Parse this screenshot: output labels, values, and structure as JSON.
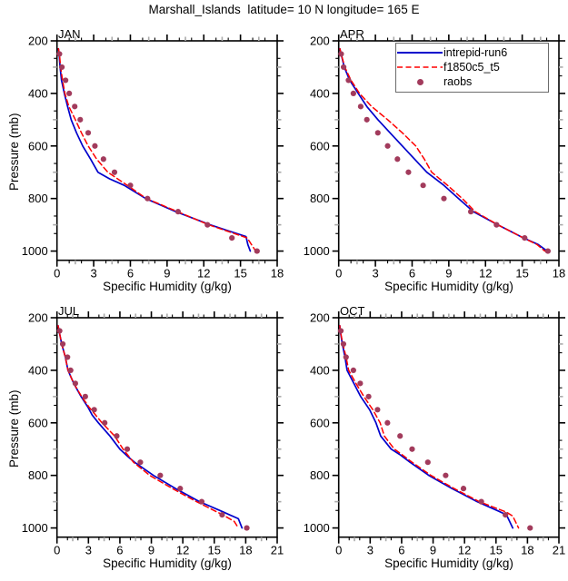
{
  "title": "Marshall_Islands  latitude= 10 N longitude= 165 E",
  "colors": {
    "model_run6": "#0000cc",
    "model_f1850": "#ff0000",
    "raobs": "#a23b5c",
    "axis": "#000000",
    "minor_gray": "#aaaaaa",
    "legend_border": "#6b6b6b"
  },
  "legend": {
    "position": "top-right of APR panel",
    "entries": [
      {
        "label": "intrepid-run6",
        "type": "line-solid",
        "color": "#0000cc"
      },
      {
        "label": "f1850c5_t5",
        "type": "line-dashed",
        "color": "#ff0000"
      },
      {
        "label": "raobs",
        "type": "dot",
        "color": "#a23b5c"
      }
    ]
  },
  "chart_data": [
    {
      "type": "line",
      "title": "JAN",
      "xlabel": "Specific Humidity (g/kg)",
      "ylabel": "Pressure (mb)",
      "xlim": [
        0,
        18
      ],
      "xticks": [
        0,
        3,
        6,
        9,
        12,
        15,
        18
      ],
      "ylim": [
        200,
        1035
      ],
      "yticks": [
        200,
        400,
        600,
        800,
        1000
      ],
      "y_axis_inverted_note": "pressure increases downward",
      "series": [
        {
          "name": "intrepid-run6",
          "style": "solid",
          "color": "#0000cc",
          "points": [
            [
              0.12,
              230
            ],
            [
              0.18,
              250
            ],
            [
              0.25,
              300
            ],
            [
              0.37,
              350
            ],
            [
              0.6,
              400
            ],
            [
              0.87,
              450
            ],
            [
              1.16,
              500
            ],
            [
              1.6,
              550
            ],
            [
              2.1,
              600
            ],
            [
              2.75,
              650
            ],
            [
              3.35,
              700
            ],
            [
              4.3,
              725
            ],
            [
              5.5,
              750
            ],
            [
              7.25,
              800
            ],
            [
              9.7,
              850
            ],
            [
              12.5,
              900
            ],
            [
              15.45,
              945
            ],
            [
              15.6,
              975
            ],
            [
              15.8,
              1000
            ]
          ]
        },
        {
          "name": "f1850c5_t5",
          "style": "dashed",
          "color": "#ff0000",
          "points": [
            [
              0.12,
              230
            ],
            [
              0.2,
              250
            ],
            [
              0.3,
              300
            ],
            [
              0.45,
              350
            ],
            [
              0.65,
              400
            ],
            [
              0.97,
              450
            ],
            [
              1.5,
              500
            ],
            [
              2.0,
              550
            ],
            [
              2.55,
              600
            ],
            [
              3.25,
              650
            ],
            [
              4.15,
              700
            ],
            [
              5.75,
              750
            ],
            [
              7.3,
              800
            ],
            [
              9.85,
              850
            ],
            [
              12.4,
              900
            ],
            [
              15.55,
              950
            ],
            [
              16.25,
              1000
            ]
          ]
        },
        {
          "name": "raobs",
          "style": "markers",
          "color": "#a23b5c",
          "points": [
            [
              0.2,
              250
            ],
            [
              0.4,
              300
            ],
            [
              0.7,
              350
            ],
            [
              1.0,
              400
            ],
            [
              1.45,
              450
            ],
            [
              1.9,
              500
            ],
            [
              2.55,
              550
            ],
            [
              3.1,
              600
            ],
            [
              3.8,
              650
            ],
            [
              4.7,
              700
            ],
            [
              6.0,
              750
            ],
            [
              7.4,
              800
            ],
            [
              9.9,
              850
            ],
            [
              12.3,
              900
            ],
            [
              14.3,
              950
            ],
            [
              16.35,
              1000
            ]
          ]
        }
      ]
    },
    {
      "type": "line",
      "title": "APR",
      "xlabel": "Specific Humidity (g/kg)",
      "ylabel": "Pressure (mb)",
      "xlim": [
        0,
        18
      ],
      "xticks": [
        0,
        3,
        6,
        9,
        12,
        15,
        18
      ],
      "ylim": [
        200,
        1035
      ],
      "yticks": [
        200,
        400,
        600,
        800,
        1000
      ],
      "series": [
        {
          "name": "intrepid-run6",
          "style": "solid",
          "color": "#0000cc",
          "points": [
            [
              0.1,
              230
            ],
            [
              0.2,
              250
            ],
            [
              0.45,
              300
            ],
            [
              0.9,
              350
            ],
            [
              1.6,
              400
            ],
            [
              2.3,
              450
            ],
            [
              3.2,
              500
            ],
            [
              4.2,
              550
            ],
            [
              5.2,
              600
            ],
            [
              6.2,
              650
            ],
            [
              7.2,
              700
            ],
            [
              8.6,
              750
            ],
            [
              9.8,
              800
            ],
            [
              11.0,
              850
            ],
            [
              13.0,
              900
            ],
            [
              15.1,
              950
            ],
            [
              16.3,
              975
            ],
            [
              17.05,
              1000
            ]
          ]
        },
        {
          "name": "f1850c5_t5",
          "style": "dashed",
          "color": "#ff0000",
          "points": [
            [
              0.1,
              230
            ],
            [
              0.2,
              250
            ],
            [
              0.5,
              300
            ],
            [
              1.0,
              350
            ],
            [
              1.7,
              400
            ],
            [
              2.7,
              450
            ],
            [
              4.0,
              500
            ],
            [
              5.2,
              550
            ],
            [
              6.3,
              600
            ],
            [
              7.0,
              650
            ],
            [
              7.6,
              700
            ],
            [
              8.9,
              750
            ],
            [
              10.1,
              800
            ],
            [
              11.15,
              850
            ],
            [
              13.0,
              900
            ],
            [
              15.1,
              950
            ],
            [
              16.2,
              975
            ],
            [
              16.85,
              1000
            ]
          ]
        },
        {
          "name": "raobs",
          "style": "markers",
          "color": "#a23b5c",
          "points": [
            [
              0.2,
              250
            ],
            [
              0.4,
              300
            ],
            [
              0.8,
              350
            ],
            [
              1.2,
              400
            ],
            [
              1.8,
              450
            ],
            [
              2.3,
              500
            ],
            [
              3.2,
              550
            ],
            [
              4.0,
              600
            ],
            [
              4.8,
              650
            ],
            [
              5.7,
              700
            ],
            [
              6.9,
              750
            ],
            [
              8.6,
              800
            ],
            [
              10.8,
              850
            ],
            [
              12.9,
              900
            ],
            [
              15.2,
              950
            ],
            [
              17.1,
              1000
            ]
          ]
        }
      ]
    },
    {
      "type": "line",
      "title": "JUL",
      "xlabel": "Specific Humidity (g/kg)",
      "ylabel": "Pressure (mb)",
      "xlim": [
        0,
        21
      ],
      "xticks": [
        0,
        3,
        6,
        9,
        12,
        15,
        18,
        21
      ],
      "ylim": [
        200,
        1035
      ],
      "yticks": [
        200,
        400,
        600,
        800,
        1000
      ],
      "series": [
        {
          "name": "intrepid-run6",
          "style": "solid",
          "color": "#0000cc",
          "points": [
            [
              0.1,
              230
            ],
            [
              0.2,
              250
            ],
            [
              0.45,
              300
            ],
            [
              0.8,
              350
            ],
            [
              1.05,
              400
            ],
            [
              1.6,
              450
            ],
            [
              2.3,
              500
            ],
            [
              2.95,
              540
            ],
            [
              3.35,
              570
            ],
            [
              3.95,
              600
            ],
            [
              5.05,
              650
            ],
            [
              6.0,
              700
            ],
            [
              6.8,
              730
            ],
            [
              7.4,
              750
            ],
            [
              9.2,
              800
            ],
            [
              11.3,
              850
            ],
            [
              13.6,
              900
            ],
            [
              15.9,
              940
            ],
            [
              17.3,
              965
            ],
            [
              17.65,
              1000
            ]
          ]
        },
        {
          "name": "f1850c5_t5",
          "style": "dashed",
          "color": "#ff0000",
          "points": [
            [
              0.1,
              230
            ],
            [
              0.2,
              250
            ],
            [
              0.45,
              300
            ],
            [
              0.8,
              350
            ],
            [
              1.05,
              400
            ],
            [
              1.6,
              450
            ],
            [
              2.35,
              500
            ],
            [
              3.05,
              540
            ],
            [
              4.3,
              600
            ],
            [
              5.5,
              650
            ],
            [
              6.3,
              700
            ],
            [
              7.3,
              750
            ],
            [
              8.85,
              800
            ],
            [
              11.0,
              850
            ],
            [
              13.3,
              900
            ],
            [
              15.8,
              950
            ],
            [
              16.9,
              975
            ],
            [
              17.3,
              1000
            ]
          ]
        },
        {
          "name": "raobs",
          "style": "markers",
          "color": "#a23b5c",
          "points": [
            [
              0.25,
              250
            ],
            [
              0.55,
              300
            ],
            [
              1.0,
              350
            ],
            [
              1.3,
              400
            ],
            [
              1.75,
              450
            ],
            [
              2.7,
              500
            ],
            [
              3.55,
              550
            ],
            [
              4.55,
              600
            ],
            [
              5.7,
              650
            ],
            [
              6.7,
              700
            ],
            [
              7.95,
              750
            ],
            [
              9.85,
              800
            ],
            [
              11.75,
              850
            ],
            [
              13.8,
              900
            ],
            [
              15.75,
              950
            ],
            [
              18.1,
              1000
            ]
          ]
        }
      ]
    },
    {
      "type": "line",
      "title": "OCT",
      "xlabel": "Specific Humidity (g/kg)",
      "ylabel": "Pressure (mb)",
      "xlim": [
        0,
        21
      ],
      "xticks": [
        0,
        3,
        6,
        9,
        12,
        15,
        18,
        21
      ],
      "ylim": [
        200,
        1035
      ],
      "yticks": [
        200,
        400,
        600,
        800,
        1000
      ],
      "series": [
        {
          "name": "intrepid-run6",
          "style": "solid",
          "color": "#0000cc",
          "points": [
            [
              0.1,
              230
            ],
            [
              0.15,
              250
            ],
            [
              0.35,
              300
            ],
            [
              0.6,
              350
            ],
            [
              0.8,
              400
            ],
            [
              1.45,
              450
            ],
            [
              2.1,
              500
            ],
            [
              2.95,
              550
            ],
            [
              3.55,
              600
            ],
            [
              4.0,
              650
            ],
            [
              5.0,
              700
            ],
            [
              5.8,
              720
            ],
            [
              6.8,
              750
            ],
            [
              8.6,
              800
            ],
            [
              10.8,
              850
            ],
            [
              13.2,
              900
            ],
            [
              15.2,
              935
            ],
            [
              16.0,
              950
            ],
            [
              16.6,
              1000
            ]
          ]
        },
        {
          "name": "f1850c5_t5",
          "style": "dashed",
          "color": "#ff0000",
          "points": [
            [
              0.1,
              230
            ],
            [
              0.15,
              250
            ],
            [
              0.4,
              300
            ],
            [
              0.7,
              350
            ],
            [
              0.95,
              400
            ],
            [
              1.65,
              450
            ],
            [
              2.4,
              500
            ],
            [
              3.25,
              550
            ],
            [
              3.95,
              600
            ],
            [
              4.35,
              650
            ],
            [
              5.3,
              700
            ],
            [
              6.0,
              720
            ],
            [
              7.0,
              750
            ],
            [
              8.8,
              800
            ],
            [
              11.0,
              850
            ],
            [
              13.4,
              900
            ],
            [
              16.0,
              940
            ],
            [
              16.6,
              955
            ],
            [
              17.15,
              1000
            ]
          ]
        },
        {
          "name": "raobs",
          "style": "markers",
          "color": "#a23b5c",
          "points": [
            [
              0.2,
              250
            ],
            [
              0.45,
              300
            ],
            [
              0.7,
              350
            ],
            [
              1.4,
              400
            ],
            [
              2.05,
              450
            ],
            [
              2.85,
              500
            ],
            [
              3.7,
              550
            ],
            [
              4.65,
              600
            ],
            [
              5.85,
              650
            ],
            [
              7.0,
              700
            ],
            [
              8.5,
              750
            ],
            [
              10.2,
              800
            ],
            [
              11.9,
              850
            ],
            [
              13.6,
              900
            ],
            [
              15.9,
              950
            ],
            [
              18.25,
              1000
            ]
          ]
        }
      ]
    }
  ]
}
